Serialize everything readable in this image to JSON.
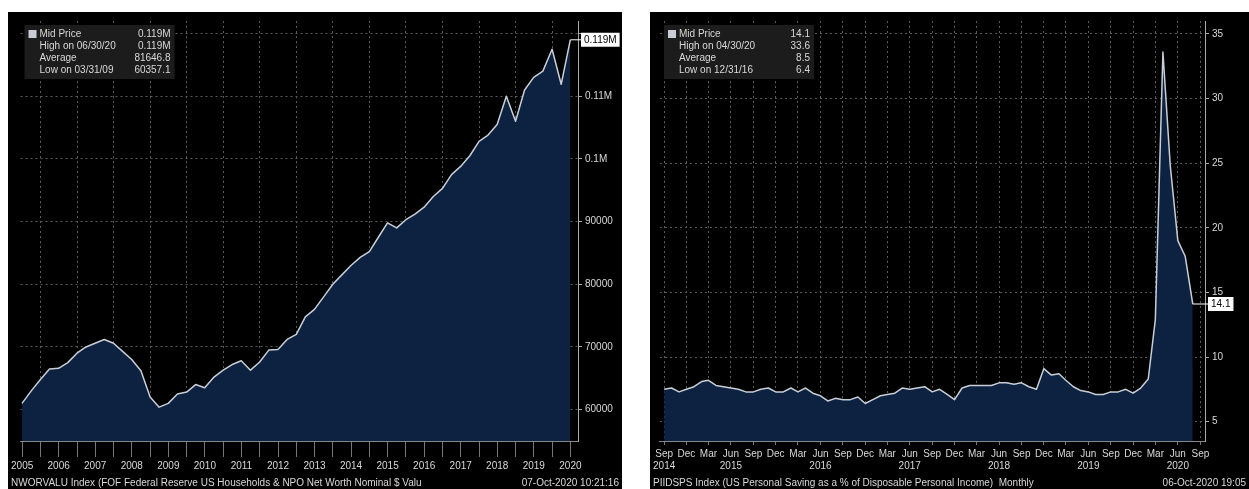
{
  "chart_data": [
    {
      "type": "area",
      "x": [
        "2005-06-30",
        "2005-09-30",
        "2005-12-31",
        "2006-03-31",
        "2006-06-30",
        "2006-09-30",
        "2006-12-31",
        "2007-03-31",
        "2007-06-30",
        "2007-09-30",
        "2007-12-31",
        "2008-03-31",
        "2008-06-30",
        "2008-09-30",
        "2008-12-31",
        "2009-03-31",
        "2009-06-30",
        "2009-09-30",
        "2009-12-31",
        "2010-03-31",
        "2010-06-30",
        "2010-09-30",
        "2010-12-31",
        "2011-03-31",
        "2011-06-30",
        "2011-09-30",
        "2011-12-31",
        "2012-03-31",
        "2012-06-30",
        "2012-09-30",
        "2012-12-31",
        "2013-03-31",
        "2013-06-30",
        "2013-09-30",
        "2013-12-31",
        "2014-03-31",
        "2014-06-30",
        "2014-09-30",
        "2014-12-31",
        "2015-03-31",
        "2015-06-30",
        "2015-09-30",
        "2015-12-31",
        "2016-03-31",
        "2016-06-30",
        "2016-09-30",
        "2016-12-31",
        "2017-03-31",
        "2017-06-30",
        "2017-09-30",
        "2017-12-31",
        "2018-03-31",
        "2018-06-30",
        "2018-09-30",
        "2018-12-31",
        "2019-03-31",
        "2019-06-30",
        "2019-09-30",
        "2019-12-31",
        "2020-03-31",
        "2020-06-30"
      ],
      "series": [
        {
          "name": "Mid Price",
          "color": "#c9ced6",
          "values": [
            61000,
            63000,
            64800,
            66500,
            66600,
            67500,
            69000,
            70000,
            70600,
            71200,
            70600,
            69300,
            68000,
            66200,
            62000,
            60400,
            61000,
            62500,
            62800,
            64000,
            63500,
            65200,
            66300,
            67200,
            67800,
            66300,
            67600,
            69500,
            69600,
            71200,
            72000,
            74800,
            76000,
            78000,
            80000,
            81500,
            83000,
            84300,
            85200,
            87500,
            89800,
            89000,
            90300,
            91200,
            92300,
            94000,
            95300,
            97500,
            98800,
            100500,
            102800,
            103800,
            105500,
            110000,
            106000,
            111000,
            113000,
            114000,
            117500,
            111900,
            119000
          ]
        }
      ],
      "xlim": [
        "2005-06-15",
        "2020-09-15"
      ],
      "xticks": [
        {
          "value": "2005-07-01",
          "label": "2005"
        },
        {
          "value": "2006-01-01",
          "label": null
        },
        {
          "value": "2006-07-01",
          "label": "2006"
        },
        {
          "value": "2007-01-01",
          "label": null
        },
        {
          "value": "2007-07-01",
          "label": "2007"
        },
        {
          "value": "2008-01-01",
          "label": null
        },
        {
          "value": "2008-07-01",
          "label": "2008"
        },
        {
          "value": "2009-01-01",
          "label": null
        },
        {
          "value": "2009-07-01",
          "label": "2009"
        },
        {
          "value": "2010-01-01",
          "label": null
        },
        {
          "value": "2010-07-01",
          "label": "2010"
        },
        {
          "value": "2011-01-01",
          "label": null
        },
        {
          "value": "2011-07-01",
          "label": "2011"
        },
        {
          "value": "2012-01-01",
          "label": null
        },
        {
          "value": "2012-07-01",
          "label": "2012"
        },
        {
          "value": "2013-01-01",
          "label": null
        },
        {
          "value": "2013-07-01",
          "label": "2013"
        },
        {
          "value": "2014-01-01",
          "label": null
        },
        {
          "value": "2014-07-01",
          "label": "2014"
        },
        {
          "value": "2015-01-01",
          "label": null
        },
        {
          "value": "2015-07-01",
          "label": "2015"
        },
        {
          "value": "2016-01-01",
          "label": null
        },
        {
          "value": "2016-07-01",
          "label": "2016"
        },
        {
          "value": "2017-01-01",
          "label": null
        },
        {
          "value": "2017-07-01",
          "label": "2017"
        },
        {
          "value": "2018-01-01",
          "label": null
        },
        {
          "value": "2018-07-01",
          "label": "2018"
        },
        {
          "value": "2019-01-01",
          "label": null
        },
        {
          "value": "2019-07-01",
          "label": "2019"
        },
        {
          "value": "2020-01-01",
          "label": null
        },
        {
          "value": "2020-07-01",
          "label": "2020"
        }
      ],
      "ylim": [
        55000,
        122000
      ],
      "yticks": [
        60000,
        70000,
        80000,
        90000,
        {
          "value": 100000,
          "label": "0.1M"
        },
        {
          "value": 110000,
          "label": "0.11M"
        },
        {
          "value": 120000,
          "label": null
        }
      ],
      "grid": true,
      "legend": "top left",
      "annotations": [
        {
          "text": "0.119M",
          "x": "2020-06-30",
          "y": 119000
        },
        "High on 06/30/20 0.119M",
        "Average 81646.8",
        "Low on 03/31/09 60357.1",
        "NWORVALU Index (FOF Federal Reserve US Households & NPO Net Worth Nominal $ Valu",
        "07-Oct-2020 10:21:16"
      ]
    },
    {
      "type": "area",
      "x": [
        "2014-09",
        "2014-10",
        "2014-11",
        "2014-12",
        "2015-01",
        "2015-02",
        "2015-03",
        "2015-04",
        "2015-05",
        "2015-06",
        "2015-07",
        "2015-08",
        "2015-09",
        "2015-10",
        "2015-11",
        "2015-12",
        "2016-01",
        "2016-02",
        "2016-03",
        "2016-04",
        "2016-05",
        "2016-06",
        "2016-07",
        "2016-08",
        "2016-09",
        "2016-10",
        "2016-11",
        "2016-12",
        "2017-01",
        "2017-02",
        "2017-03",
        "2017-04",
        "2017-05",
        "2017-06",
        "2017-07",
        "2017-08",
        "2017-09",
        "2017-10",
        "2017-11",
        "2017-12",
        "2018-01",
        "2018-02",
        "2018-03",
        "2018-04",
        "2018-05",
        "2018-06",
        "2018-07",
        "2018-08",
        "2018-09",
        "2018-10",
        "2018-11",
        "2018-12",
        "2019-01",
        "2019-02",
        "2019-03",
        "2019-04",
        "2019-05",
        "2019-06",
        "2019-07",
        "2019-08",
        "2019-09",
        "2019-10",
        "2019-11",
        "2019-12",
        "2020-01",
        "2020-02",
        "2020-03",
        "2020-04",
        "2020-05",
        "2020-06",
        "2020-07",
        "2020-08"
      ],
      "series": [
        {
          "name": "Mid Price",
          "color": "#c9ced6",
          "values": [
            7.5,
            7.6,
            7.3,
            7.5,
            7.7,
            8.1,
            8.2,
            7.8,
            7.7,
            7.6,
            7.5,
            7.3,
            7.3,
            7.5,
            7.6,
            7.3,
            7.3,
            7.6,
            7.3,
            7.6,
            7.2,
            7.0,
            6.6,
            6.8,
            6.7,
            6.7,
            6.9,
            6.4,
            6.7,
            7.0,
            7.1,
            7.2,
            7.6,
            7.5,
            7.6,
            7.7,
            7.3,
            7.5,
            7.1,
            6.7,
            7.6,
            7.8,
            7.8,
            7.8,
            7.8,
            8.0,
            8.0,
            7.9,
            8.0,
            7.7,
            7.5,
            9.1,
            8.6,
            8.7,
            8.2,
            7.7,
            7.4,
            7.3,
            7.1,
            7.1,
            7.3,
            7.3,
            7.5,
            7.2,
            7.6,
            8.3,
            12.9,
            33.6,
            24.8,
            19.0,
            17.8,
            14.1
          ]
        }
      ],
      "xlim": [
        "2014-08-15",
        "2020-09-20"
      ],
      "xticks": [
        {
          "value": "2014-09",
          "label": "Sep\n2014"
        },
        {
          "value": "2014-12",
          "label": "Dec"
        },
        {
          "value": "2015-03",
          "label": "Mar"
        },
        {
          "value": "2015-06",
          "label": "Jun\n2015"
        },
        {
          "value": "2015-09",
          "label": "Sep"
        },
        {
          "value": "2015-12",
          "label": "Dec"
        },
        {
          "value": "2016-03",
          "label": "Mar"
        },
        {
          "value": "2016-06",
          "label": "Jun\n2016"
        },
        {
          "value": "2016-09",
          "label": "Sep"
        },
        {
          "value": "2016-12",
          "label": "Dec"
        },
        {
          "value": "2017-03",
          "label": "Mar"
        },
        {
          "value": "2017-06",
          "label": "Jun\n2017"
        },
        {
          "value": "2017-09",
          "label": "Sep"
        },
        {
          "value": "2017-12",
          "label": "Dec"
        },
        {
          "value": "2018-03",
          "label": "Mar"
        },
        {
          "value": "2018-06",
          "label": "Jun\n2018"
        },
        {
          "value": "2018-09",
          "label": "Sep"
        },
        {
          "value": "2018-12",
          "label": "Dec"
        },
        {
          "value": "2019-03",
          "label": "Mar"
        },
        {
          "value": "2019-06",
          "label": "Jun\n2019"
        },
        {
          "value": "2019-09",
          "label": "Sep"
        },
        {
          "value": "2019-12",
          "label": "Dec"
        },
        {
          "value": "2020-03",
          "label": "Mar"
        },
        {
          "value": "2020-06",
          "label": "Jun\n2020"
        },
        {
          "value": "2020-09",
          "label": "Sep"
        }
      ],
      "ylim": [
        3.5,
        36
      ],
      "yticks": [
        5,
        10,
        15,
        20,
        25,
        30,
        35
      ],
      "grid": true,
      "legend": "top left",
      "annotations": [
        {
          "text": "14.1",
          "x": "2020-08",
          "y": 14.1
        },
        "High on 04/30/20 33.6",
        "Average 8.5",
        "Low on 12/31/16 6.4",
        "PIIDSPS Index (US Personal Saving as a % of Disposable Personal Income)  Monthly",
        "06-Oct-2020 19:05"
      ]
    }
  ]
}
